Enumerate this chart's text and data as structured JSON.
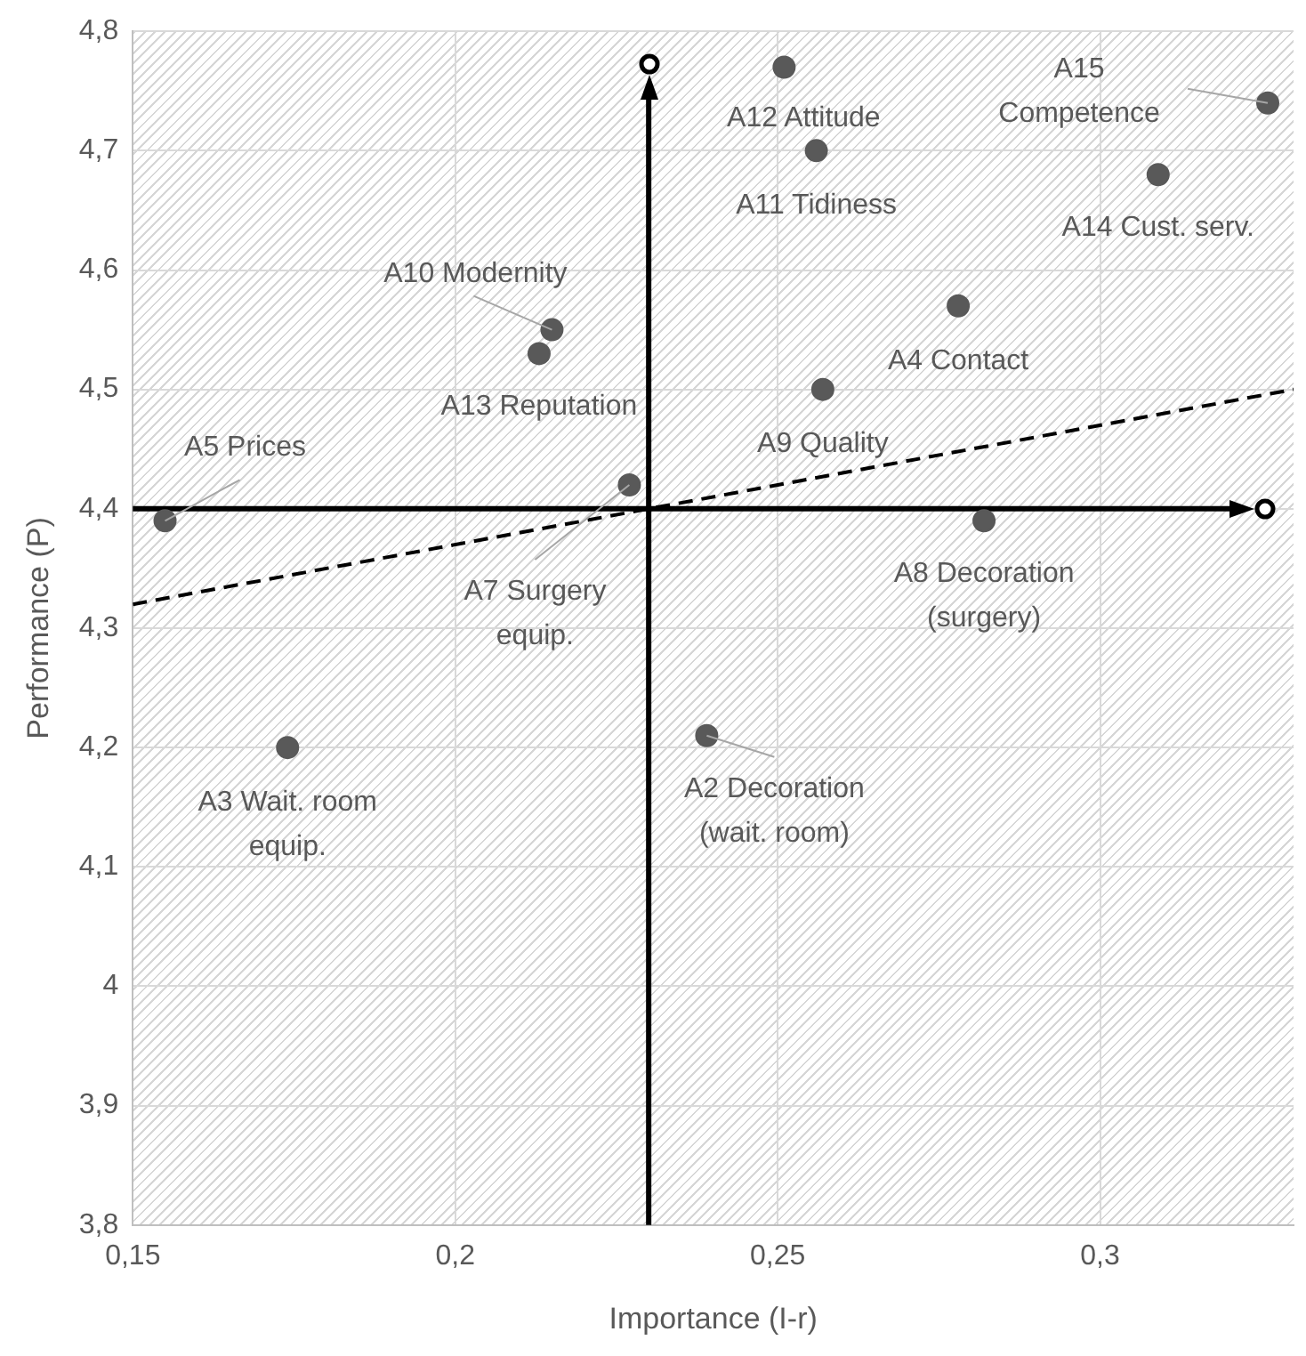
{
  "chart_data": {
    "type": "scatter",
    "xlabel": "Importance (I-r)",
    "ylabel": "Performance (P)",
    "xlim": [
      0.15,
      0.33
    ],
    "ylim": [
      3.8,
      4.8
    ],
    "xticks": [
      {
        "value": 0.15,
        "label": "0,15"
      },
      {
        "value": 0.2,
        "label": "0,2"
      },
      {
        "value": 0.25,
        "label": "0,25"
      },
      {
        "value": 0.3,
        "label": "0,3"
      }
    ],
    "yticks": [
      {
        "value": 3.8,
        "label": "3,8"
      },
      {
        "value": 3.9,
        "label": "3,9"
      },
      4,
      {
        "value": 4.1,
        "label": "4,1"
      },
      {
        "value": 4.2,
        "label": "4,2"
      },
      {
        "value": 4.3,
        "label": "4,3"
      },
      {
        "value": 4.4,
        "label": "4,4"
      },
      {
        "value": 4.5,
        "label": "4,5"
      },
      {
        "value": 4.6,
        "label": "4,6"
      },
      {
        "value": 4.7,
        "label": "4,7"
      },
      {
        "value": 4.8,
        "label": "4,8"
      }
    ],
    "grid": true,
    "legend": false,
    "series": [
      {
        "color": "#595959",
        "marker": "circle",
        "x": [
          0.155,
          0.215,
          0.213,
          0.227,
          0.251,
          0.256,
          0.326,
          0.309,
          0.278,
          0.257,
          0.282,
          0.174,
          0.239
        ],
        "values": [
          4.39,
          4.55,
          4.53,
          4.42,
          4.77,
          4.7,
          4.74,
          4.68,
          4.57,
          4.5,
          4.39,
          4.2,
          4.21
        ]
      },
      {
        "type": "line",
        "color": "#000000",
        "marker": "none",
        "line_style": "dashed",
        "x": [
          0.15,
          0.33
        ],
        "values": [
          4.32,
          4.5
        ]
      }
    ],
    "ref_lines": [
      {
        "axis": "x",
        "value": 0.23,
        "color": "#000000"
      },
      {
        "axis": "y",
        "value": 4.4,
        "color": "#000000"
      }
    ],
    "annotations": [
      {
        "text": "A5 Prices",
        "x": 0.155,
        "y": 4.39
      },
      {
        "text": "A10 Modernity",
        "x": 0.215,
        "y": 4.55
      },
      {
        "text": "A13 Reputation",
        "x": 0.213,
        "y": 4.53
      },
      {
        "text": "A7 Surgery equip.",
        "x": 0.227,
        "y": 4.42
      },
      {
        "text": "A12 Attitude",
        "x": 0.251,
        "y": 4.77
      },
      {
        "text": "A11 Tidiness",
        "x": 0.256,
        "y": 4.7
      },
      {
        "text": "A15 Competence",
        "x": 0.326,
        "y": 4.74
      },
      {
        "text": "A14 Cust. serv.",
        "x": 0.309,
        "y": 4.68
      },
      {
        "text": "A4 Contact",
        "x": 0.278,
        "y": 4.57
      },
      {
        "text": "A9 Quality",
        "x": 0.257,
        "y": 4.5
      },
      {
        "text": "A8 Decoration (surgery)",
        "x": 0.282,
        "y": 4.39
      },
      {
        "text": "A3 Wait. room equip.",
        "x": 0.174,
        "y": 4.2
      },
      {
        "text": "A2 Decoration (wait. room)",
        "x": 0.239,
        "y": 4.21
      }
    ]
  }
}
